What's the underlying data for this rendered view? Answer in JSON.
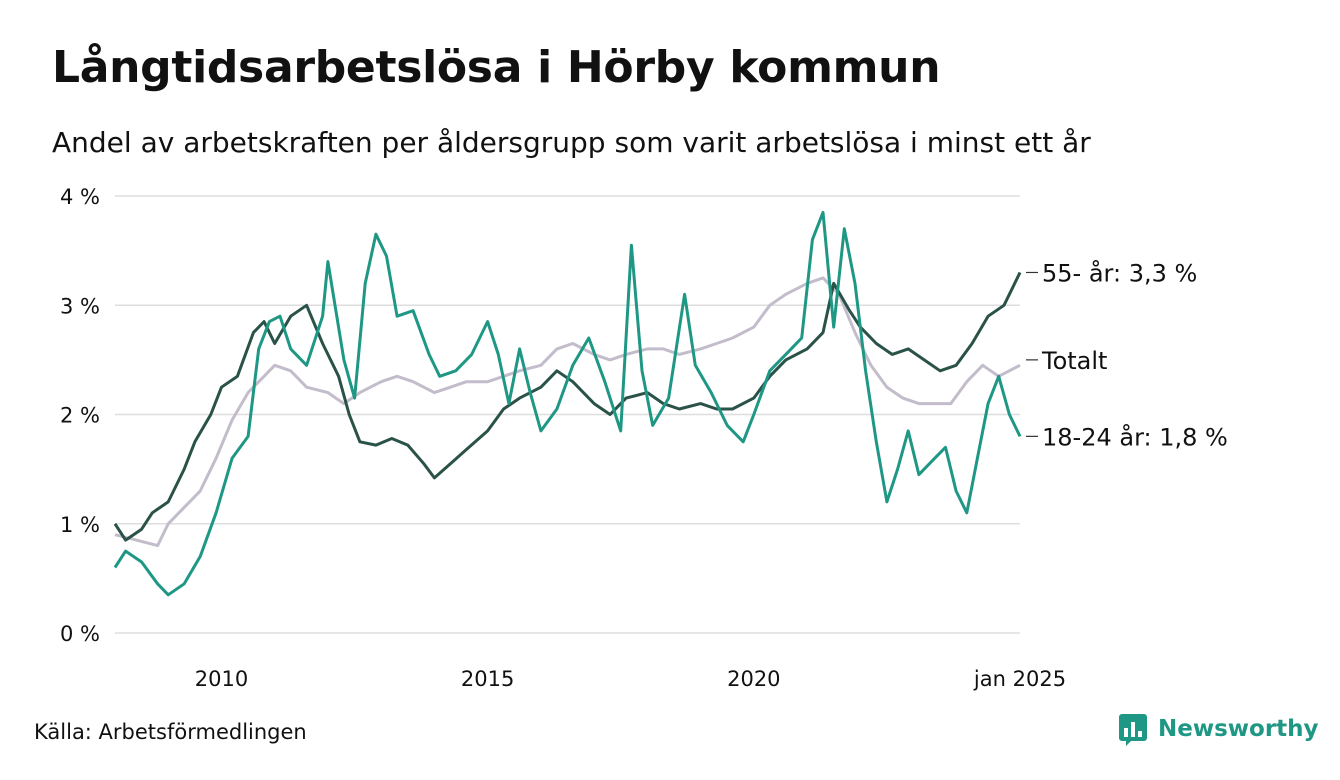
{
  "title": "Långtidsarbetslösa i Hörby kommun",
  "subtitle": "Andel av arbetskraften per åldersgrupp som varit arbetslösa i minst ett år",
  "source": "Källa: Arbetsförmedlingen",
  "brand": {
    "name": "Newsworthy",
    "icon": "bar-chart-icon",
    "color": "#1f9785"
  },
  "chart_data": {
    "type": "line",
    "x_range": [
      2008.0,
      2025.0
    ],
    "y_range": [
      0,
      4
    ],
    "y_ticks": [
      0,
      1,
      2,
      3,
      4
    ],
    "y_tick_labels": [
      "0 %",
      "1 %",
      "2 %",
      "3 %",
      "4 %"
    ],
    "x_ticks": [
      2010,
      2015,
      2020,
      2025
    ],
    "x_tick_labels": [
      "2010",
      "2015",
      "2020",
      "jan 2025"
    ],
    "grid": "horizontal",
    "series": [
      {
        "key": "total",
        "label": "Totalt",
        "color": "#c3bccb",
        "points": [
          [
            2008.0,
            0.9
          ],
          [
            2008.4,
            0.85
          ],
          [
            2008.8,
            0.8
          ],
          [
            2009.0,
            1.0
          ],
          [
            2009.3,
            1.15
          ],
          [
            2009.6,
            1.3
          ],
          [
            2009.9,
            1.6
          ],
          [
            2010.2,
            1.95
          ],
          [
            2010.5,
            2.2
          ],
          [
            2010.8,
            2.35
          ],
          [
            2011.0,
            2.45
          ],
          [
            2011.3,
            2.4
          ],
          [
            2011.6,
            2.25
          ],
          [
            2012.0,
            2.2
          ],
          [
            2012.3,
            2.1
          ],
          [
            2012.6,
            2.2
          ],
          [
            2013.0,
            2.3
          ],
          [
            2013.3,
            2.35
          ],
          [
            2013.6,
            2.3
          ],
          [
            2014.0,
            2.2
          ],
          [
            2014.3,
            2.25
          ],
          [
            2014.6,
            2.3
          ],
          [
            2015.0,
            2.3
          ],
          [
            2015.3,
            2.35
          ],
          [
            2015.6,
            2.4
          ],
          [
            2016.0,
            2.45
          ],
          [
            2016.3,
            2.6
          ],
          [
            2016.6,
            2.65
          ],
          [
            2017.0,
            2.55
          ],
          [
            2017.3,
            2.5
          ],
          [
            2017.6,
            2.55
          ],
          [
            2018.0,
            2.6
          ],
          [
            2018.3,
            2.6
          ],
          [
            2018.6,
            2.55
          ],
          [
            2019.0,
            2.6
          ],
          [
            2019.3,
            2.65
          ],
          [
            2019.6,
            2.7
          ],
          [
            2020.0,
            2.8
          ],
          [
            2020.3,
            3.0
          ],
          [
            2020.6,
            3.1
          ],
          [
            2021.0,
            3.2
          ],
          [
            2021.3,
            3.25
          ],
          [
            2021.6,
            3.1
          ],
          [
            2021.9,
            2.75
          ],
          [
            2022.2,
            2.45
          ],
          [
            2022.5,
            2.25
          ],
          [
            2022.8,
            2.15
          ],
          [
            2023.1,
            2.1
          ],
          [
            2023.4,
            2.1
          ],
          [
            2023.7,
            2.1
          ],
          [
            2024.0,
            2.3
          ],
          [
            2024.3,
            2.45
          ],
          [
            2024.6,
            2.35
          ],
          [
            2025.0,
            2.45
          ]
        ]
      },
      {
        "key": "age55",
        "label": "55- år: 3,3 %",
        "color": "#2a5248",
        "points": [
          [
            2008.0,
            1.0
          ],
          [
            2008.2,
            0.85
          ],
          [
            2008.5,
            0.95
          ],
          [
            2008.7,
            1.1
          ],
          [
            2009.0,
            1.2
          ],
          [
            2009.3,
            1.5
          ],
          [
            2009.5,
            1.75
          ],
          [
            2009.8,
            2.0
          ],
          [
            2010.0,
            2.25
          ],
          [
            2010.3,
            2.35
          ],
          [
            2010.6,
            2.75
          ],
          [
            2010.8,
            2.85
          ],
          [
            2011.0,
            2.65
          ],
          [
            2011.3,
            2.9
          ],
          [
            2011.6,
            3.0
          ],
          [
            2011.9,
            2.65
          ],
          [
            2012.2,
            2.35
          ],
          [
            2012.4,
            2.0
          ],
          [
            2012.6,
            1.75
          ],
          [
            2012.9,
            1.72
          ],
          [
            2013.2,
            1.78
          ],
          [
            2013.5,
            1.72
          ],
          [
            2013.8,
            1.55
          ],
          [
            2014.0,
            1.42
          ],
          [
            2014.3,
            1.55
          ],
          [
            2014.6,
            1.68
          ],
          [
            2015.0,
            1.85
          ],
          [
            2015.3,
            2.05
          ],
          [
            2015.6,
            2.15
          ],
          [
            2016.0,
            2.25
          ],
          [
            2016.3,
            2.4
          ],
          [
            2016.6,
            2.3
          ],
          [
            2017.0,
            2.1
          ],
          [
            2017.3,
            2.0
          ],
          [
            2017.6,
            2.15
          ],
          [
            2018.0,
            2.2
          ],
          [
            2018.3,
            2.1
          ],
          [
            2018.6,
            2.05
          ],
          [
            2019.0,
            2.1
          ],
          [
            2019.3,
            2.05
          ],
          [
            2019.6,
            2.05
          ],
          [
            2020.0,
            2.15
          ],
          [
            2020.3,
            2.35
          ],
          [
            2020.6,
            2.5
          ],
          [
            2021.0,
            2.6
          ],
          [
            2021.3,
            2.75
          ],
          [
            2021.5,
            3.2
          ],
          [
            2021.8,
            2.95
          ],
          [
            2022.0,
            2.8
          ],
          [
            2022.3,
            2.65
          ],
          [
            2022.6,
            2.55
          ],
          [
            2022.9,
            2.6
          ],
          [
            2023.2,
            2.5
          ],
          [
            2023.5,
            2.4
          ],
          [
            2023.8,
            2.45
          ],
          [
            2024.1,
            2.65
          ],
          [
            2024.4,
            2.9
          ],
          [
            2024.7,
            3.0
          ],
          [
            2025.0,
            3.3
          ]
        ]
      },
      {
        "key": "age1824",
        "label": "18-24 år: 1,8 %",
        "color": "#1f9785",
        "points": [
          [
            2008.0,
            0.6
          ],
          [
            2008.2,
            0.75
          ],
          [
            2008.5,
            0.65
          ],
          [
            2008.8,
            0.45
          ],
          [
            2009.0,
            0.35
          ],
          [
            2009.3,
            0.45
          ],
          [
            2009.6,
            0.7
          ],
          [
            2009.9,
            1.1
          ],
          [
            2010.2,
            1.6
          ],
          [
            2010.5,
            1.8
          ],
          [
            2010.7,
            2.6
          ],
          [
            2010.9,
            2.85
          ],
          [
            2011.1,
            2.9
          ],
          [
            2011.3,
            2.6
          ],
          [
            2011.6,
            2.45
          ],
          [
            2011.9,
            2.9
          ],
          [
            2012.0,
            3.4
          ],
          [
            2012.3,
            2.5
          ],
          [
            2012.5,
            2.15
          ],
          [
            2012.7,
            3.2
          ],
          [
            2012.9,
            3.65
          ],
          [
            2013.1,
            3.45
          ],
          [
            2013.3,
            2.9
          ],
          [
            2013.6,
            2.95
          ],
          [
            2013.9,
            2.55
          ],
          [
            2014.1,
            2.35
          ],
          [
            2014.4,
            2.4
          ],
          [
            2014.7,
            2.55
          ],
          [
            2015.0,
            2.85
          ],
          [
            2015.2,
            2.55
          ],
          [
            2015.4,
            2.1
          ],
          [
            2015.6,
            2.6
          ],
          [
            2015.8,
            2.2
          ],
          [
            2016.0,
            1.85
          ],
          [
            2016.3,
            2.05
          ],
          [
            2016.6,
            2.45
          ],
          [
            2016.9,
            2.7
          ],
          [
            2017.2,
            2.3
          ],
          [
            2017.5,
            1.85
          ],
          [
            2017.7,
            3.55
          ],
          [
            2017.9,
            2.4
          ],
          [
            2018.1,
            1.9
          ],
          [
            2018.4,
            2.15
          ],
          [
            2018.7,
            3.1
          ],
          [
            2018.9,
            2.45
          ],
          [
            2019.2,
            2.2
          ],
          [
            2019.5,
            1.9
          ],
          [
            2019.8,
            1.75
          ],
          [
            2020.0,
            2.0
          ],
          [
            2020.3,
            2.4
          ],
          [
            2020.6,
            2.55
          ],
          [
            2020.9,
            2.7
          ],
          [
            2021.1,
            3.6
          ],
          [
            2021.3,
            3.85
          ],
          [
            2021.5,
            2.8
          ],
          [
            2021.7,
            3.7
          ],
          [
            2021.9,
            3.2
          ],
          [
            2022.1,
            2.4
          ],
          [
            2022.3,
            1.75
          ],
          [
            2022.5,
            1.2
          ],
          [
            2022.7,
            1.5
          ],
          [
            2022.9,
            1.85
          ],
          [
            2023.1,
            1.45
          ],
          [
            2023.4,
            1.6
          ],
          [
            2023.6,
            1.7
          ],
          [
            2023.8,
            1.3
          ],
          [
            2024.0,
            1.1
          ],
          [
            2024.2,
            1.6
          ],
          [
            2024.4,
            2.1
          ],
          [
            2024.6,
            2.35
          ],
          [
            2024.8,
            2.0
          ],
          [
            2025.0,
            1.8
          ]
        ]
      }
    ]
  }
}
